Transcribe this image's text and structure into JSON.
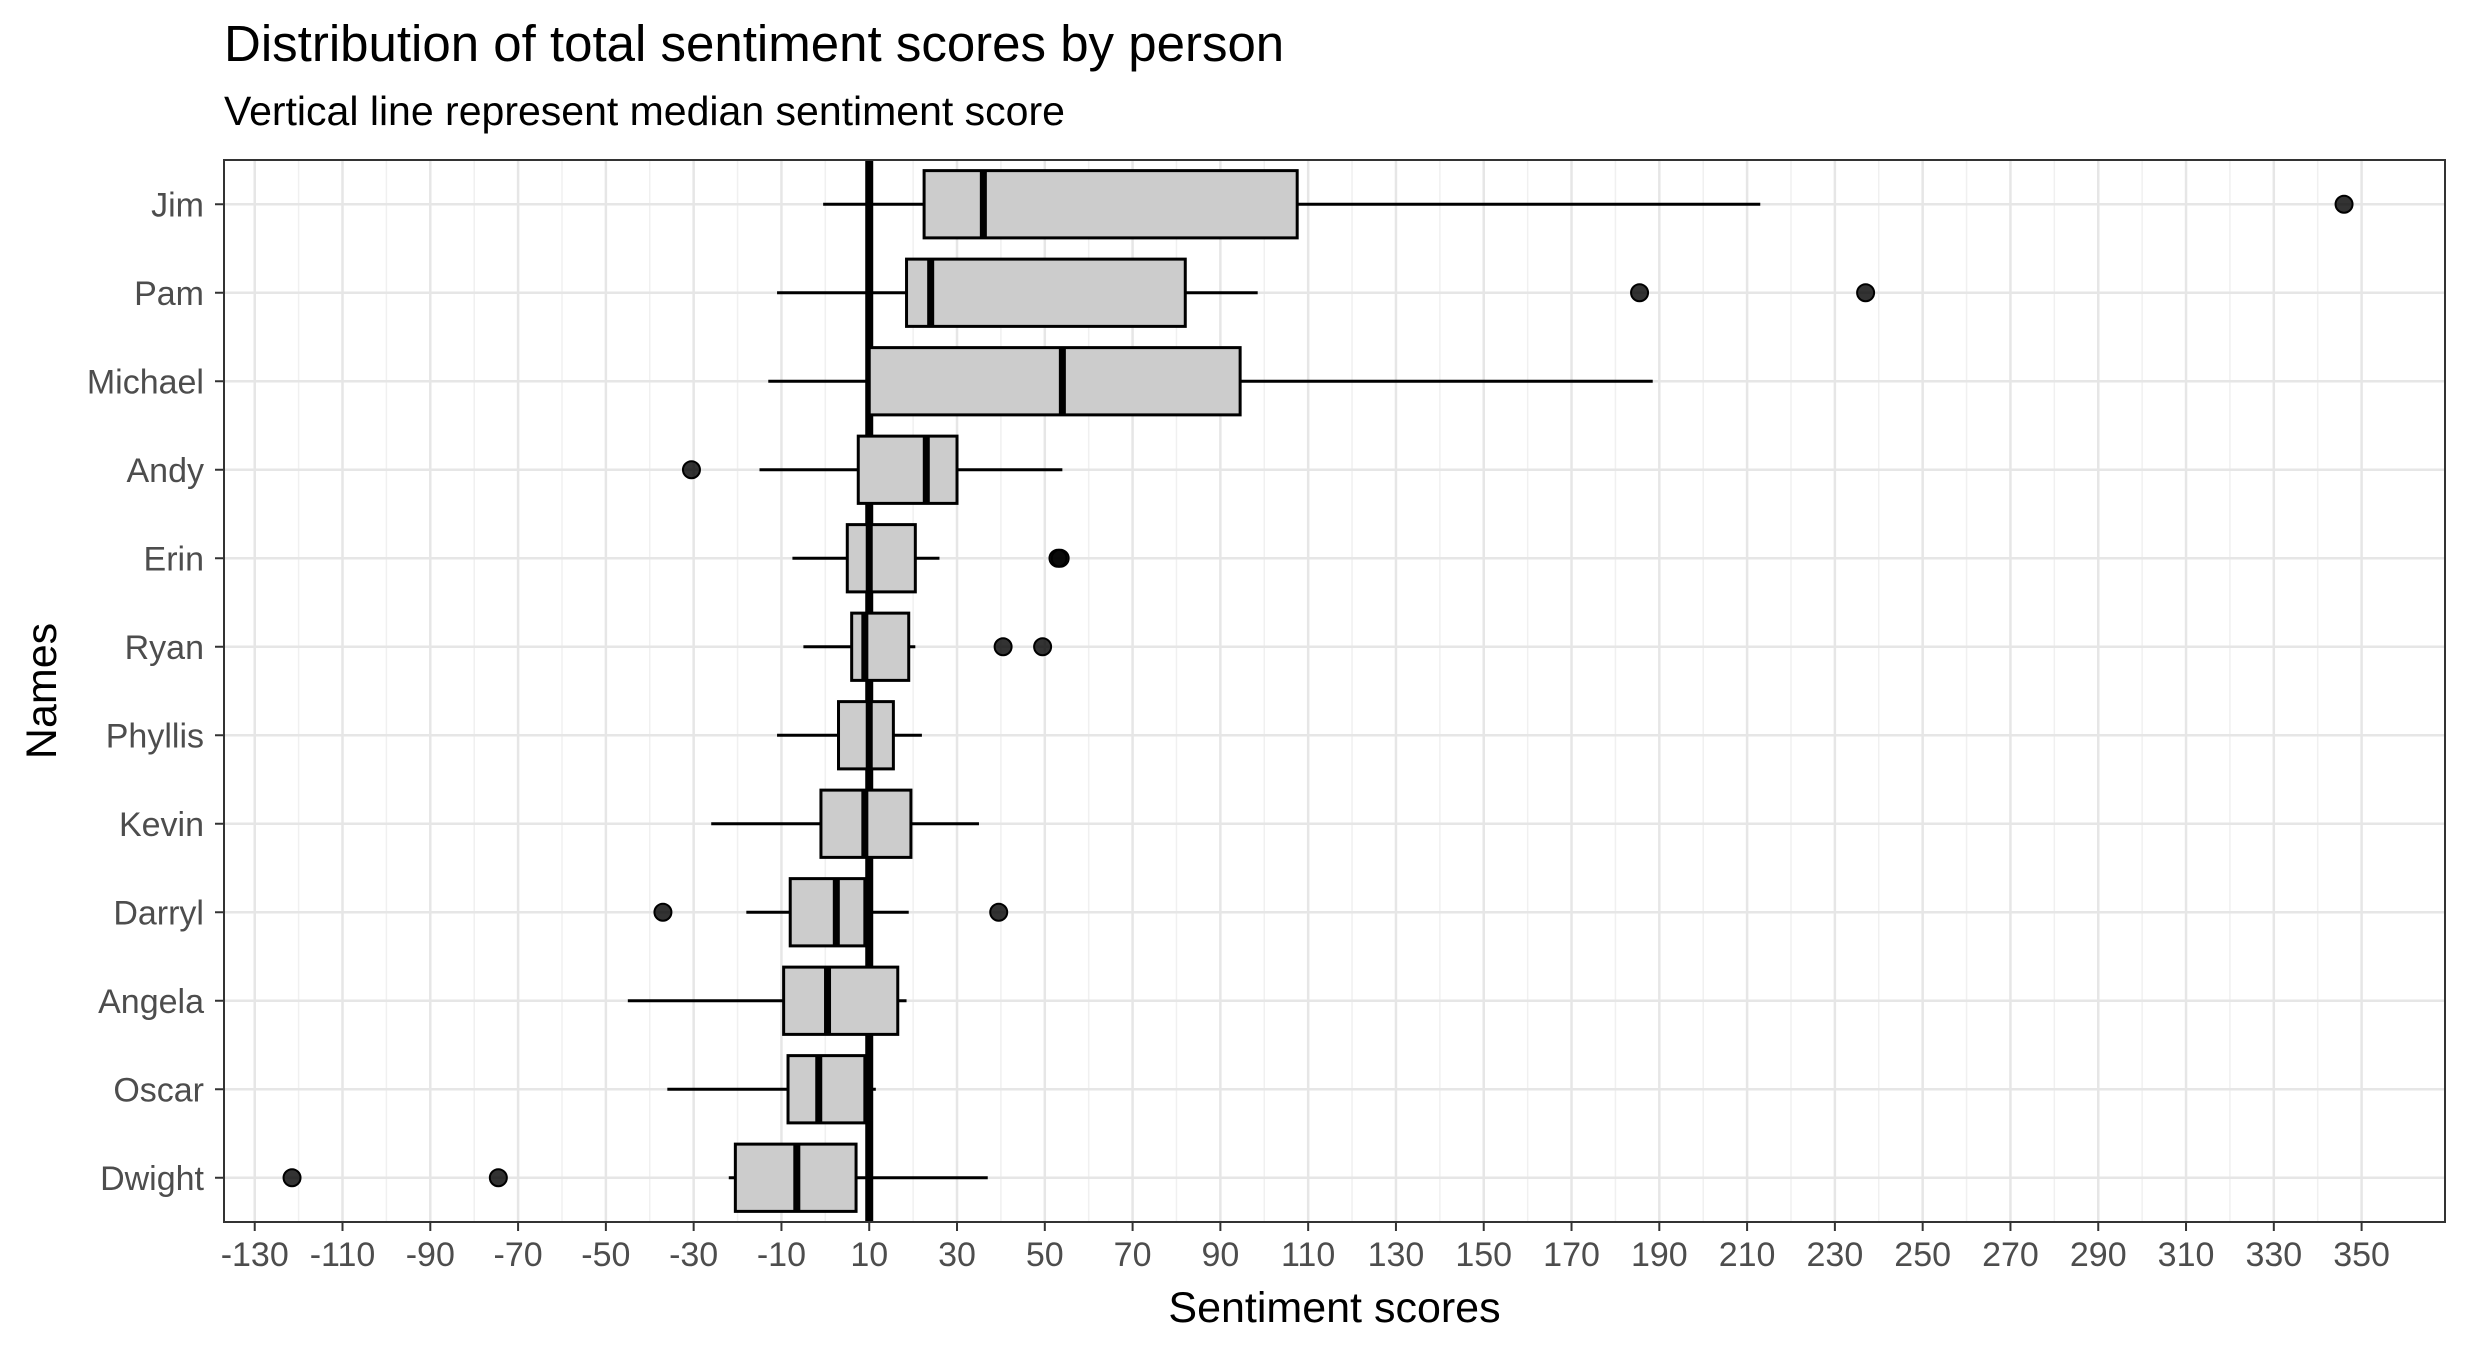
{
  "chart_data": {
    "type": "boxplot",
    "orientation": "horizontal",
    "title": "Distribution of total sentiment scores by person",
    "subtitle": "Vertical line represent median sentiment score",
    "xlabel": "Sentiment scores",
    "ylabel": "Names",
    "xlim": [
      -137,
      369
    ],
    "xticks": [
      -130,
      -110,
      -90,
      -70,
      -50,
      -30,
      -10,
      10,
      30,
      50,
      70,
      90,
      110,
      130,
      150,
      170,
      190,
      210,
      230,
      250,
      270,
      290,
      310,
      330,
      350
    ],
    "grid": true,
    "reference_line": 10,
    "box_fill": "#cccccc",
    "categories": [
      "Jim",
      "Pam",
      "Michael",
      "Andy",
      "Erin",
      "Ryan",
      "Phyllis",
      "Kevin",
      "Darryl",
      "Angela",
      "Oscar",
      "Dwight"
    ],
    "boxes": [
      {
        "name": "Jim",
        "whisker_low": -0.5,
        "q1": 22.5,
        "median": 36,
        "q3": 107.5,
        "whisker_high": 213,
        "outliers": [
          346
        ]
      },
      {
        "name": "Pam",
        "whisker_low": -11,
        "q1": 18.5,
        "median": 24,
        "q3": 82,
        "whisker_high": 98.5,
        "outliers": [
          185.5,
          237
        ]
      },
      {
        "name": "Michael",
        "whisker_low": -13,
        "q1": 10,
        "median": 54,
        "q3": 94.5,
        "whisker_high": 188.5,
        "outliers": []
      },
      {
        "name": "Andy",
        "whisker_low": -15,
        "q1": 7.5,
        "median": 23,
        "q3": 30,
        "whisker_high": 54,
        "outliers": [
          -30.5
        ]
      },
      {
        "name": "Erin",
        "whisker_low": -7.5,
        "q1": 5,
        "median": 10,
        "q3": 20.5,
        "whisker_high": 26,
        "outliers": [
          53,
          53.5
        ]
      },
      {
        "name": "Ryan",
        "whisker_low": -5,
        "q1": 6,
        "median": 9,
        "q3": 19,
        "whisker_high": 20.5,
        "outliers": [
          40.5,
          49.5
        ]
      },
      {
        "name": "Phyllis",
        "whisker_low": -11,
        "q1": 3,
        "median": 10,
        "q3": 15.5,
        "whisker_high": 22,
        "outliers": []
      },
      {
        "name": "Kevin",
        "whisker_low": -26,
        "q1": -1,
        "median": 9,
        "q3": 19.5,
        "whisker_high": 35,
        "outliers": []
      },
      {
        "name": "Darryl",
        "whisker_low": -18,
        "q1": -8,
        "median": 2.5,
        "q3": 9,
        "whisker_high": 19,
        "outliers": [
          -37,
          39.5
        ]
      },
      {
        "name": "Angela",
        "whisker_low": -45,
        "q1": -9.5,
        "median": 0.5,
        "q3": 16.5,
        "whisker_high": 18.5,
        "outliers": []
      },
      {
        "name": "Oscar",
        "whisker_low": -36,
        "q1": -8.5,
        "median": -1.5,
        "q3": 9,
        "whisker_high": 11.5,
        "outliers": []
      },
      {
        "name": "Dwight",
        "whisker_low": -22,
        "q1": -20.5,
        "median": -6.5,
        "q3": 7,
        "whisker_high": 37,
        "outliers": [
          -121.5,
          -74.5
        ]
      }
    ]
  }
}
